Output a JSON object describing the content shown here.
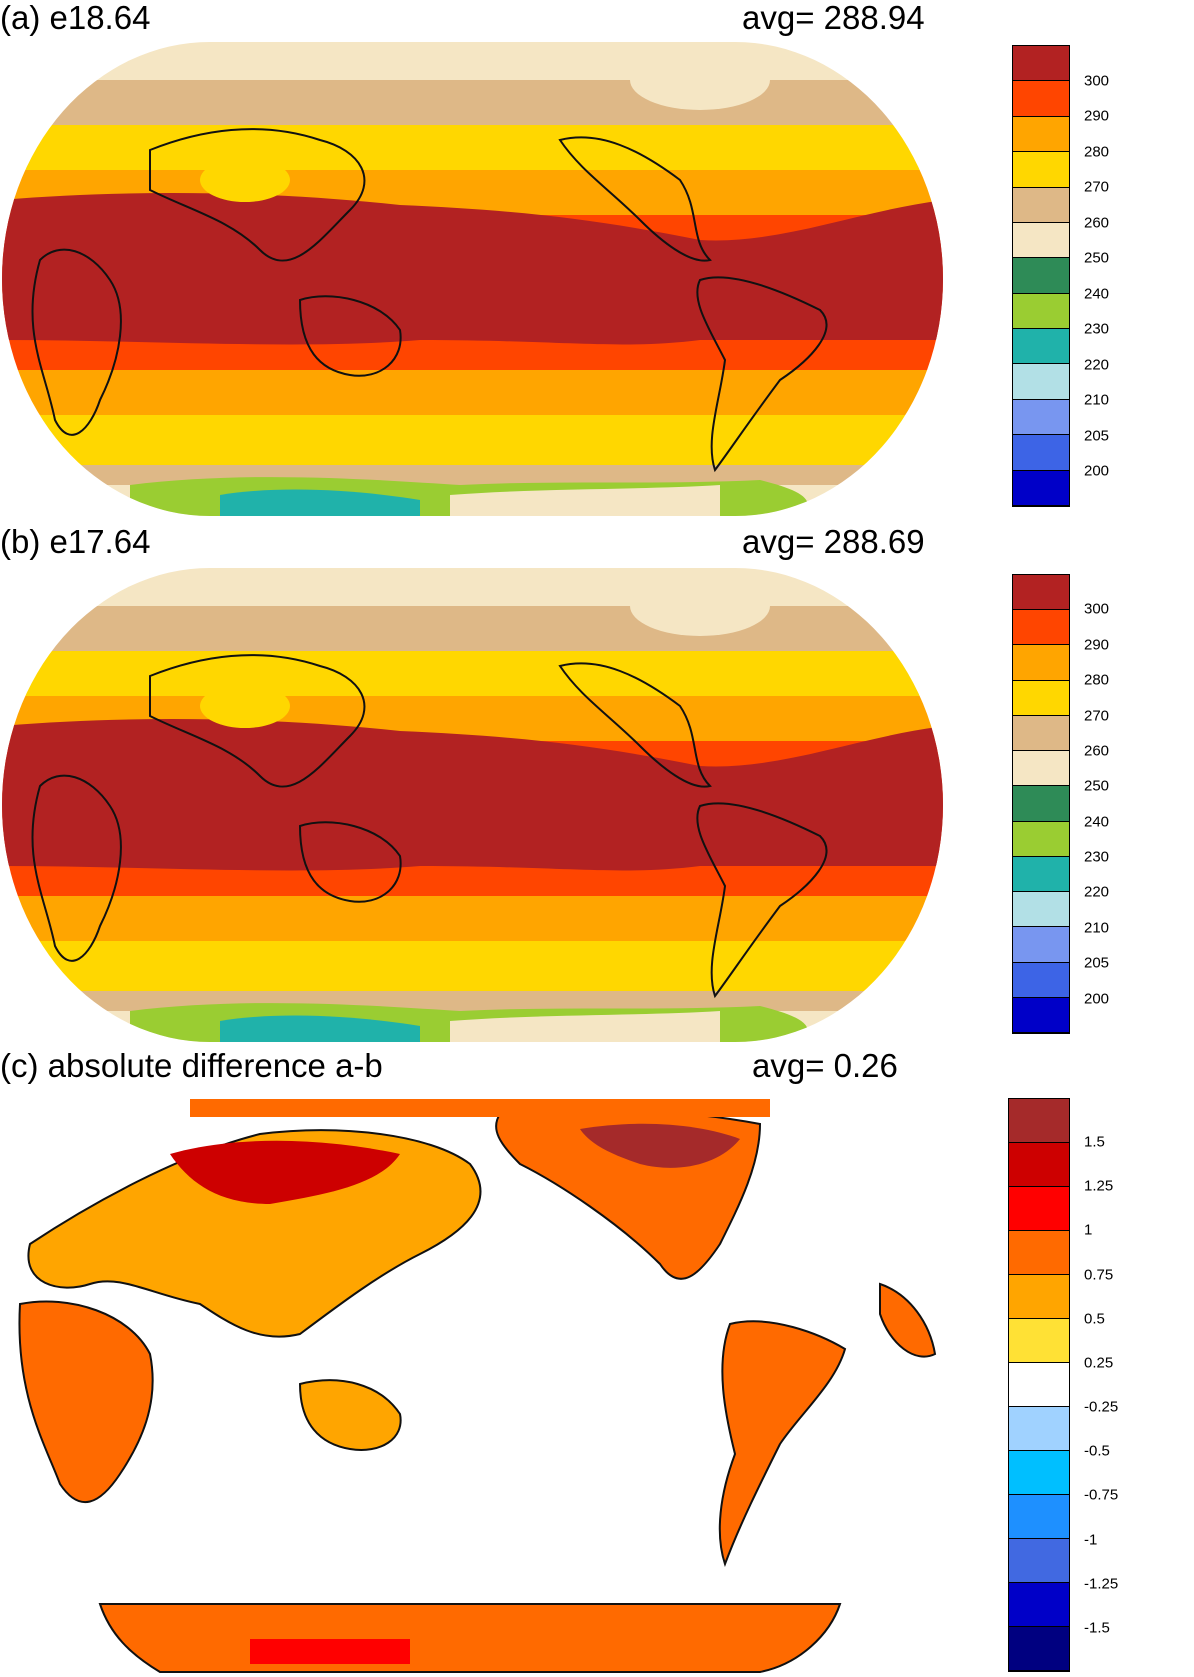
{
  "chart_data": [
    {
      "type": "heatmap",
      "panel_label": "(a) e18.64",
      "avg_text": "avg=  288.94",
      "colorbar": {
        "colors": [
          "#0000c8",
          "#3d64e6",
          "#7896f0",
          "#b2e0e6",
          "#20b2aa",
          "#9acd32",
          "#2e8b57",
          "#f5e6c4",
          "#deb887",
          "#ffd700",
          "#ffa500",
          "#ff4500",
          "#b22222"
        ],
        "tick_labels": [
          "200",
          "205",
          "210",
          "220",
          "230",
          "240",
          "250",
          "260",
          "270",
          "280",
          "290",
          "300"
        ]
      }
    },
    {
      "type": "heatmap",
      "panel_label": "(b) e17.64",
      "avg_text": "avg=  288.69",
      "colorbar": {
        "colors": [
          "#0000c8",
          "#3d64e6",
          "#7896f0",
          "#b2e0e6",
          "#20b2aa",
          "#9acd32",
          "#2e8b57",
          "#f5e6c4",
          "#deb887",
          "#ffd700",
          "#ffa500",
          "#ff4500",
          "#b22222"
        ],
        "tick_labels": [
          "200",
          "205",
          "210",
          "220",
          "230",
          "240",
          "250",
          "260",
          "270",
          "280",
          "290",
          "300"
        ]
      }
    },
    {
      "type": "heatmap",
      "panel_label": "(c) absolute difference a-b",
      "avg_text": "avg=    0.26",
      "colorbar": {
        "colors": [
          "#000080",
          "#0000c8",
          "#4169e1",
          "#1e90ff",
          "#00bfff",
          "#a0d2ff",
          "#ffffff",
          "#ffe135",
          "#ffa500",
          "#ff6a00",
          "#ff0000",
          "#cd0000",
          "#a52a2a"
        ],
        "tick_labels": [
          "-1.5",
          "-1.25",
          "-1",
          "-0.75",
          "-0.5",
          "-0.25",
          "0.25",
          "0.5",
          "0.75",
          "1",
          "1.25",
          "1.5"
        ]
      }
    }
  ]
}
